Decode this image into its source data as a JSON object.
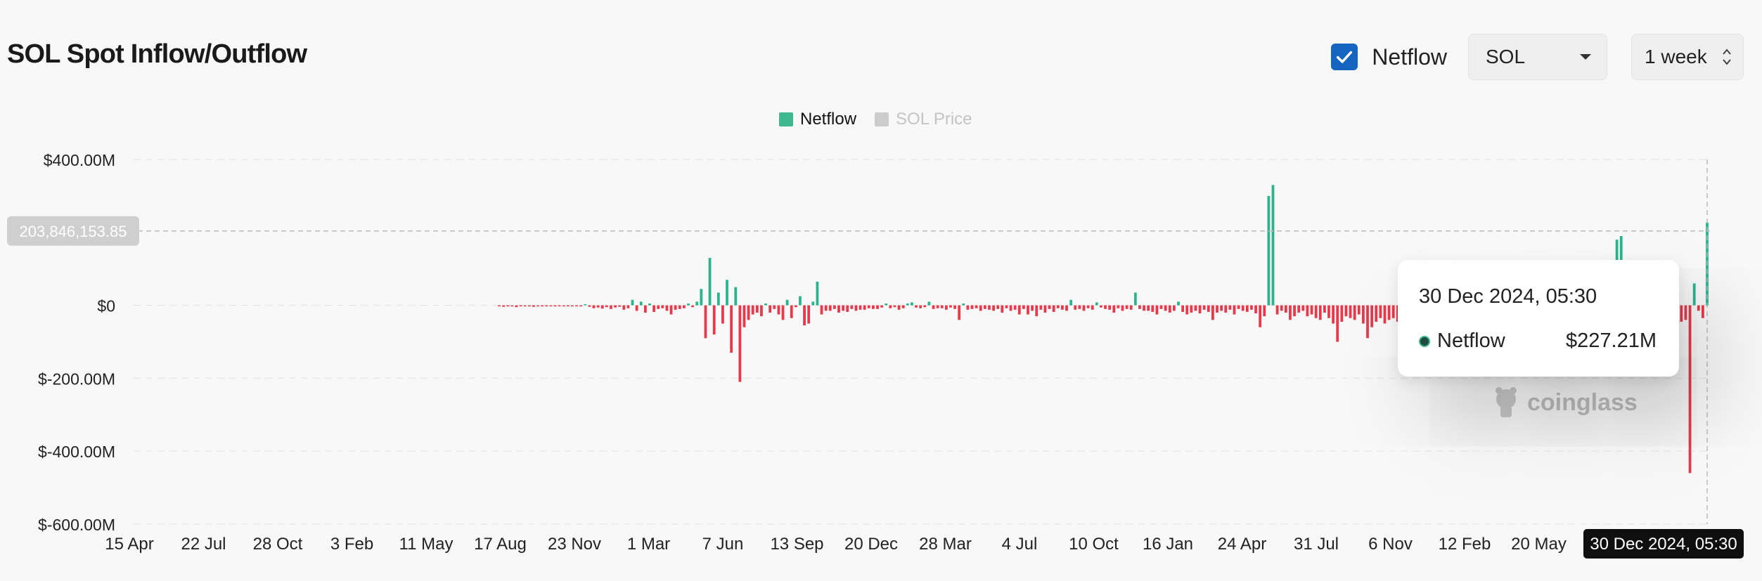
{
  "header": {
    "title": "SOL Spot Inflow/Outflow",
    "netflow_toggle_label": "Netflow",
    "netflow_checked": true,
    "coin_select": "SOL",
    "period_select": "1 week"
  },
  "legend": {
    "items": [
      {
        "label": "Netflow",
        "color": "#3fb88f",
        "active": true
      },
      {
        "label": "SOL Price",
        "color": "#cccccc",
        "active": false
      }
    ]
  },
  "crosshair": {
    "y_value_label": "203,846,153.85",
    "x_label": "30 Dec 2024, 05:30"
  },
  "tooltip": {
    "date": "30 Dec 2024, 05:30",
    "series": "Netflow",
    "value": "$227.21M"
  },
  "watermark": "coinglass",
  "colors": {
    "positive": "#2bb38e",
    "negative": "#e8394a",
    "accent": "#1565c0"
  },
  "chart_data": {
    "type": "bar",
    "ylim": [
      -600,
      400
    ],
    "y_ticks": [
      400,
      0,
      -200,
      -400,
      -600
    ],
    "y_tick_labels": [
      "$400.00M",
      "$0",
      "$-200.00M",
      "$-400.00M",
      "$-600.00M"
    ],
    "x_tick_labels": [
      "15 Apr",
      "22 Jul",
      "28 Oct",
      "3 Feb",
      "11 May",
      "17 Aug",
      "23 Nov",
      "1 Mar",
      "7 Jun",
      "13 Sep",
      "20 Dec",
      "28 Mar",
      "4 Jul",
      "10 Oct",
      "16 Jan",
      "24 Apr",
      "31 Jul",
      "6 Nov",
      "12 Feb",
      "20 May"
    ],
    "series": [
      {
        "name": "Netflow",
        "unit": "$M",
        "values": [
          -3,
          -4,
          -2,
          -3,
          -5,
          -2,
          -3,
          -2,
          -4,
          -3,
          -2,
          -3,
          -1,
          -2,
          -2,
          -3,
          -2,
          -1,
          -2,
          -2,
          3,
          -4,
          -8,
          -6,
          -9,
          -5,
          -10,
          -6,
          -4,
          -12,
          -8,
          15,
          -15,
          10,
          -20,
          5,
          -18,
          -10,
          -8,
          -15,
          -25,
          -12,
          -10,
          -8,
          5,
          -5,
          10,
          45,
          -90,
          130,
          -80,
          35,
          -50,
          70,
          -130,
          50,
          -210,
          -60,
          -40,
          -25,
          -20,
          -30,
          5,
          -20,
          -10,
          -25,
          -40,
          15,
          -35,
          -5,
          25,
          -55,
          -50,
          10,
          65,
          -25,
          -15,
          -15,
          -10,
          -20,
          -15,
          -18,
          -10,
          -15,
          -12,
          -12,
          -8,
          -10,
          -10,
          -6,
          5,
          -8,
          -5,
          -12,
          -8,
          5,
          8,
          -6,
          -8,
          -5,
          10,
          -10,
          -8,
          -8,
          -12,
          -6,
          -10,
          -40,
          5,
          -12,
          -10,
          -8,
          -15,
          -10,
          -12,
          -15,
          -10,
          -20,
          -8,
          -15,
          -12,
          -25,
          -10,
          -25,
          -15,
          -30,
          -12,
          -20,
          -10,
          -18,
          -8,
          -12,
          -15,
          15,
          -12,
          -10,
          -15,
          -8,
          -12,
          8,
          -6,
          -10,
          -12,
          -20,
          -8,
          -15,
          -10,
          -12,
          35,
          -10,
          -15,
          -15,
          -18,
          -25,
          -10,
          -15,
          -20,
          -15,
          10,
          -18,
          -25,
          -20,
          -15,
          -22,
          -12,
          -18,
          -40,
          -20,
          -15,
          -20,
          -12,
          -25,
          -10,
          -15,
          -18,
          -12,
          -22,
          -60,
          -30,
          300,
          330,
          -25,
          -15,
          -20,
          -40,
          -30,
          -20,
          -15,
          -30,
          -25,
          -35,
          -40,
          -20,
          -35,
          -50,
          -100,
          -45,
          -30,
          -35,
          -40,
          -25,
          -50,
          -90,
          -60,
          -45,
          -35,
          -50,
          -40,
          -35,
          -45,
          -60,
          -40,
          -50,
          -55,
          -40,
          -60,
          -50,
          -60,
          -40,
          -30,
          -55,
          -45,
          -25,
          -35,
          15,
          -25,
          -35,
          -30,
          -20,
          -40,
          -25,
          -50,
          -30,
          -20,
          -40,
          -30,
          -25,
          -40,
          -50,
          -70,
          -40,
          -20,
          -20,
          -60,
          -40,
          -40,
          -55,
          -40,
          -20,
          10,
          15,
          -80,
          -35,
          -40,
          -20,
          20,
          25,
          30,
          60,
          120,
          180,
          190,
          -150,
          -100,
          -35,
          -40,
          -20,
          -70,
          -35,
          -80,
          -55,
          -40,
          -45,
          -120,
          -40,
          -45,
          -40,
          -460,
          60,
          -15,
          -35,
          227.21
        ]
      }
    ],
    "grid": true,
    "legend_position": "top-center"
  }
}
